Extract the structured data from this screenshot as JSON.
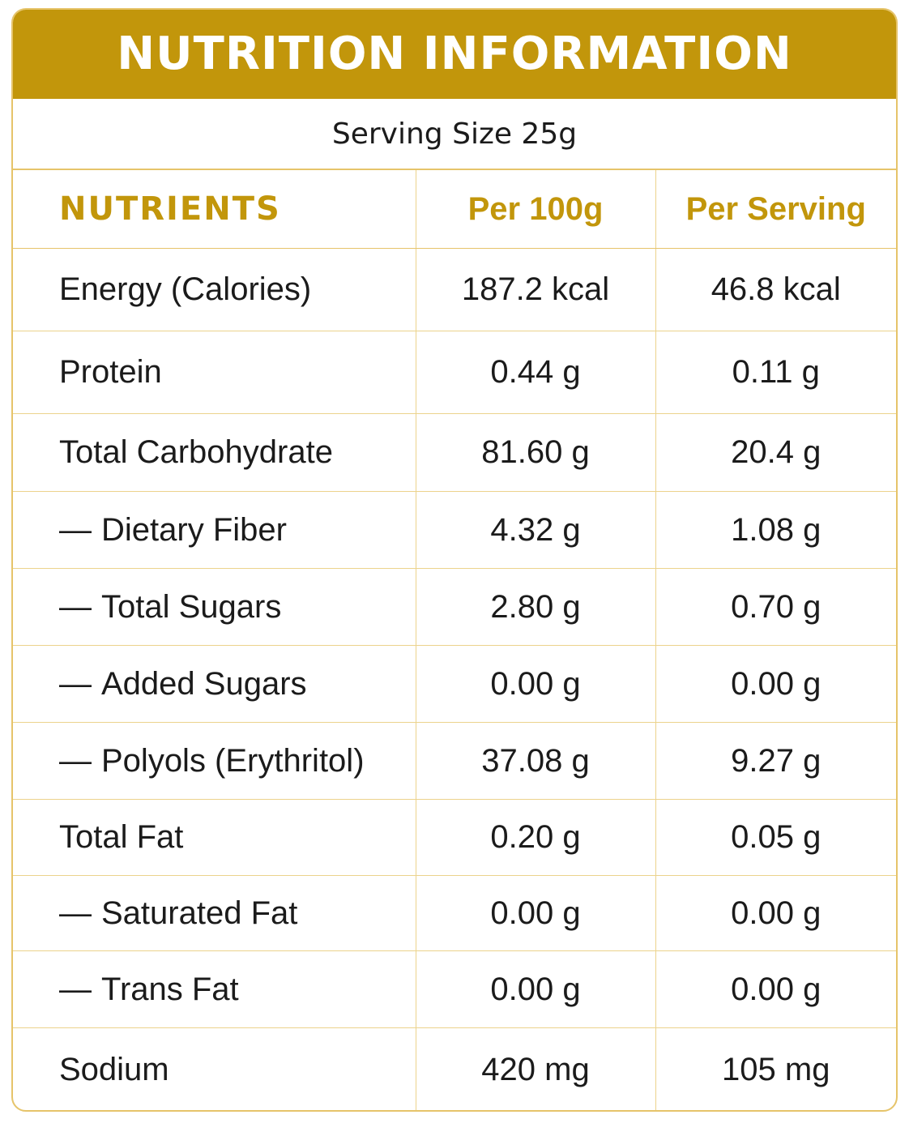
{
  "header": {
    "title": "NUTRITION INFORMATION",
    "serving_size": "Serving Size 25g"
  },
  "columns": {
    "nutrients": "NUTRIENTS",
    "per_100g": "Per 100g",
    "per_serving": "Per Serving"
  },
  "sub_marker": "—",
  "rows": [
    {
      "name": "Energy (Calories)",
      "sub": false,
      "per_100g": "187.2 kcal",
      "per_serving": "46.8 kcal"
    },
    {
      "name": "Protein",
      "sub": false,
      "per_100g": "0.44 g",
      "per_serving": "0.11 g"
    },
    {
      "name": "Total Carbohydrate",
      "sub": false,
      "per_100g": "81.60 g",
      "per_serving": "20.4 g"
    },
    {
      "name": "Dietary Fiber",
      "sub": true,
      "per_100g": "4.32 g",
      "per_serving": "1.08 g"
    },
    {
      "name": "Total Sugars",
      "sub": true,
      "per_100g": "2.80 g",
      "per_serving": "0.70 g"
    },
    {
      "name": "Added Sugars",
      "sub": true,
      "per_100g": "0.00 g",
      "per_serving": "0.00 g"
    },
    {
      "name": "Polyols (Erythritol)",
      "sub": true,
      "per_100g": "37.08 g",
      "per_serving": "9.27 g"
    },
    {
      "name": "Total Fat",
      "sub": false,
      "per_100g": "0.20 g",
      "per_serving": "0.05 g"
    },
    {
      "name": "Saturated Fat",
      "sub": true,
      "per_100g": "0.00 g",
      "per_serving": "0.00 g"
    },
    {
      "name": "Trans Fat",
      "sub": true,
      "per_100g": "0.00 g",
      "per_serving": "0.00 g"
    },
    {
      "name": "Sodium",
      "sub": false,
      "per_100g": "420 mg",
      "per_serving": "105 mg"
    }
  ],
  "colors": {
    "accent": "#c2960b",
    "border": "#e6c46a",
    "text": "#1b1b1b"
  }
}
